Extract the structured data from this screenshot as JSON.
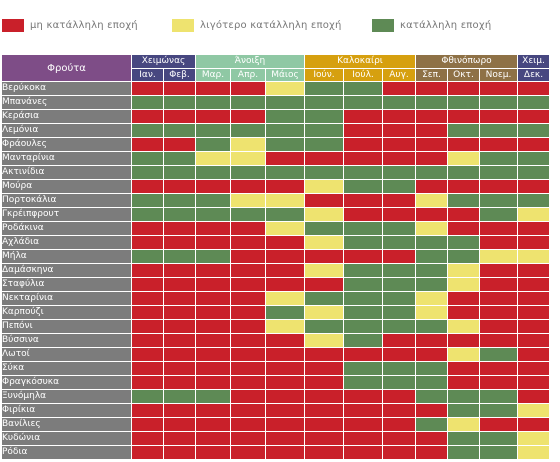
{
  "legend": [
    {
      "label": "μη κατάλληλη εποχή",
      "color": "#c9202a"
    },
    {
      "label": "λιγότερο κατάλληλη εποχή",
      "color": "#eee36f"
    },
    {
      "label": "κατάλληλη εποχή",
      "color": "#5e8a55"
    }
  ],
  "fruit_header": "Φρούτα",
  "seasons": [
    {
      "label": "Χειμώνας",
      "span": 2,
      "color": "#474780"
    },
    {
      "label": "Άνοιξη",
      "span": 3,
      "color": "#8fc8a4"
    },
    {
      "label": "Καλοκαίρι",
      "span": 3,
      "color": "#d6a00f"
    },
    {
      "label": "Φθινόπωρο",
      "span": 3,
      "color": "#8e7146"
    },
    {
      "label": "Χειμ.",
      "span": 1,
      "color": "#474780"
    }
  ],
  "months": [
    {
      "label": "Ιαν.",
      "color": "#474780"
    },
    {
      "label": "Φεβ.",
      "color": "#474780"
    },
    {
      "label": "Μαρ.",
      "color": "#8fc8a4"
    },
    {
      "label": "Απρ.",
      "color": "#8fc8a4"
    },
    {
      "label": "Μάιος",
      "color": "#8fc8a4"
    },
    {
      "label": "Ιούν.",
      "color": "#d6a00f"
    },
    {
      "label": "Ιούλ.",
      "color": "#d6a00f"
    },
    {
      "label": "Αυγ.",
      "color": "#d6a00f"
    },
    {
      "label": "Σεπ.",
      "color": "#8e7146"
    },
    {
      "label": "Οκτ.",
      "color": "#8e7146"
    },
    {
      "label": "Νοεμ.",
      "color": "#8e7146"
    },
    {
      "label": "Δεκ.",
      "color": "#474780"
    }
  ],
  "rows": [
    {
      "name": "Βερύκοκα",
      "s": "rrrryggrrrrr"
    },
    {
      "name": "Μπανάνες",
      "s": "gggggggggggg"
    },
    {
      "name": "Κεράσια",
      "s": "rrrrggrrrrrr"
    },
    {
      "name": "Λεμόνια",
      "s": "ggggggrrrggg"
    },
    {
      "name": "Φράουλες",
      "s": "rrgyggrrrrrr"
    },
    {
      "name": "Μανταρίνια",
      "s": "ggyyrrrrrygg"
    },
    {
      "name": "Ακτινίδια",
      "s": "gggggggggggg"
    },
    {
      "name": "Μούρα",
      "s": "rrrrryggrrrr"
    },
    {
      "name": "Πορτοκάλια",
      "s": "gggyyrrryggg"
    },
    {
      "name": "Γκρέιπφρουτ",
      "s": "gggggyrrrrgy"
    },
    {
      "name": "Ροδάκινα",
      "s": "rrrrygggyrrr"
    },
    {
      "name": "Αχλάδια",
      "s": "rrrrryggggrr"
    },
    {
      "name": "Μήλα",
      "s": "gggrrrrrggyy"
    },
    {
      "name": "Δαμάσκηνα",
      "s": "rrrrrygggyrr"
    },
    {
      "name": "Σταφύλια",
      "s": "rrrrrrgggyrr"
    },
    {
      "name": "Νεκταρίνια",
      "s": "rrrrygggyrrr"
    },
    {
      "name": "Καρπούζι",
      "s": "rrrrgyggyrrr"
    },
    {
      "name": "Πεπόνι",
      "s": "rrrryggggyrr"
    },
    {
      "name": "Βύσσινα",
      "s": "rrrrrygrrrrr"
    },
    {
      "name": "Λωτοί",
      "s": "rrrrrrrrrygr"
    },
    {
      "name": "Σύκα",
      "s": "rrrrrrgggrrr"
    },
    {
      "name": "Φραγκόσυκα",
      "s": "rrrrrrgggrrr"
    },
    {
      "name": "Ξυνόμηλα",
      "s": "gggrrrrrgggr"
    },
    {
      "name": "Φιρίκια",
      "s": "rrrrrrrrrggy"
    },
    {
      "name": "Βανίλιες",
      "s": "rrrrrrrrgyrr"
    },
    {
      "name": "Κυδώνια",
      "s": "rrrrrrrrrggy"
    },
    {
      "name": "Ρόδια",
      "s": "rrrrrrrrrggy"
    }
  ]
}
